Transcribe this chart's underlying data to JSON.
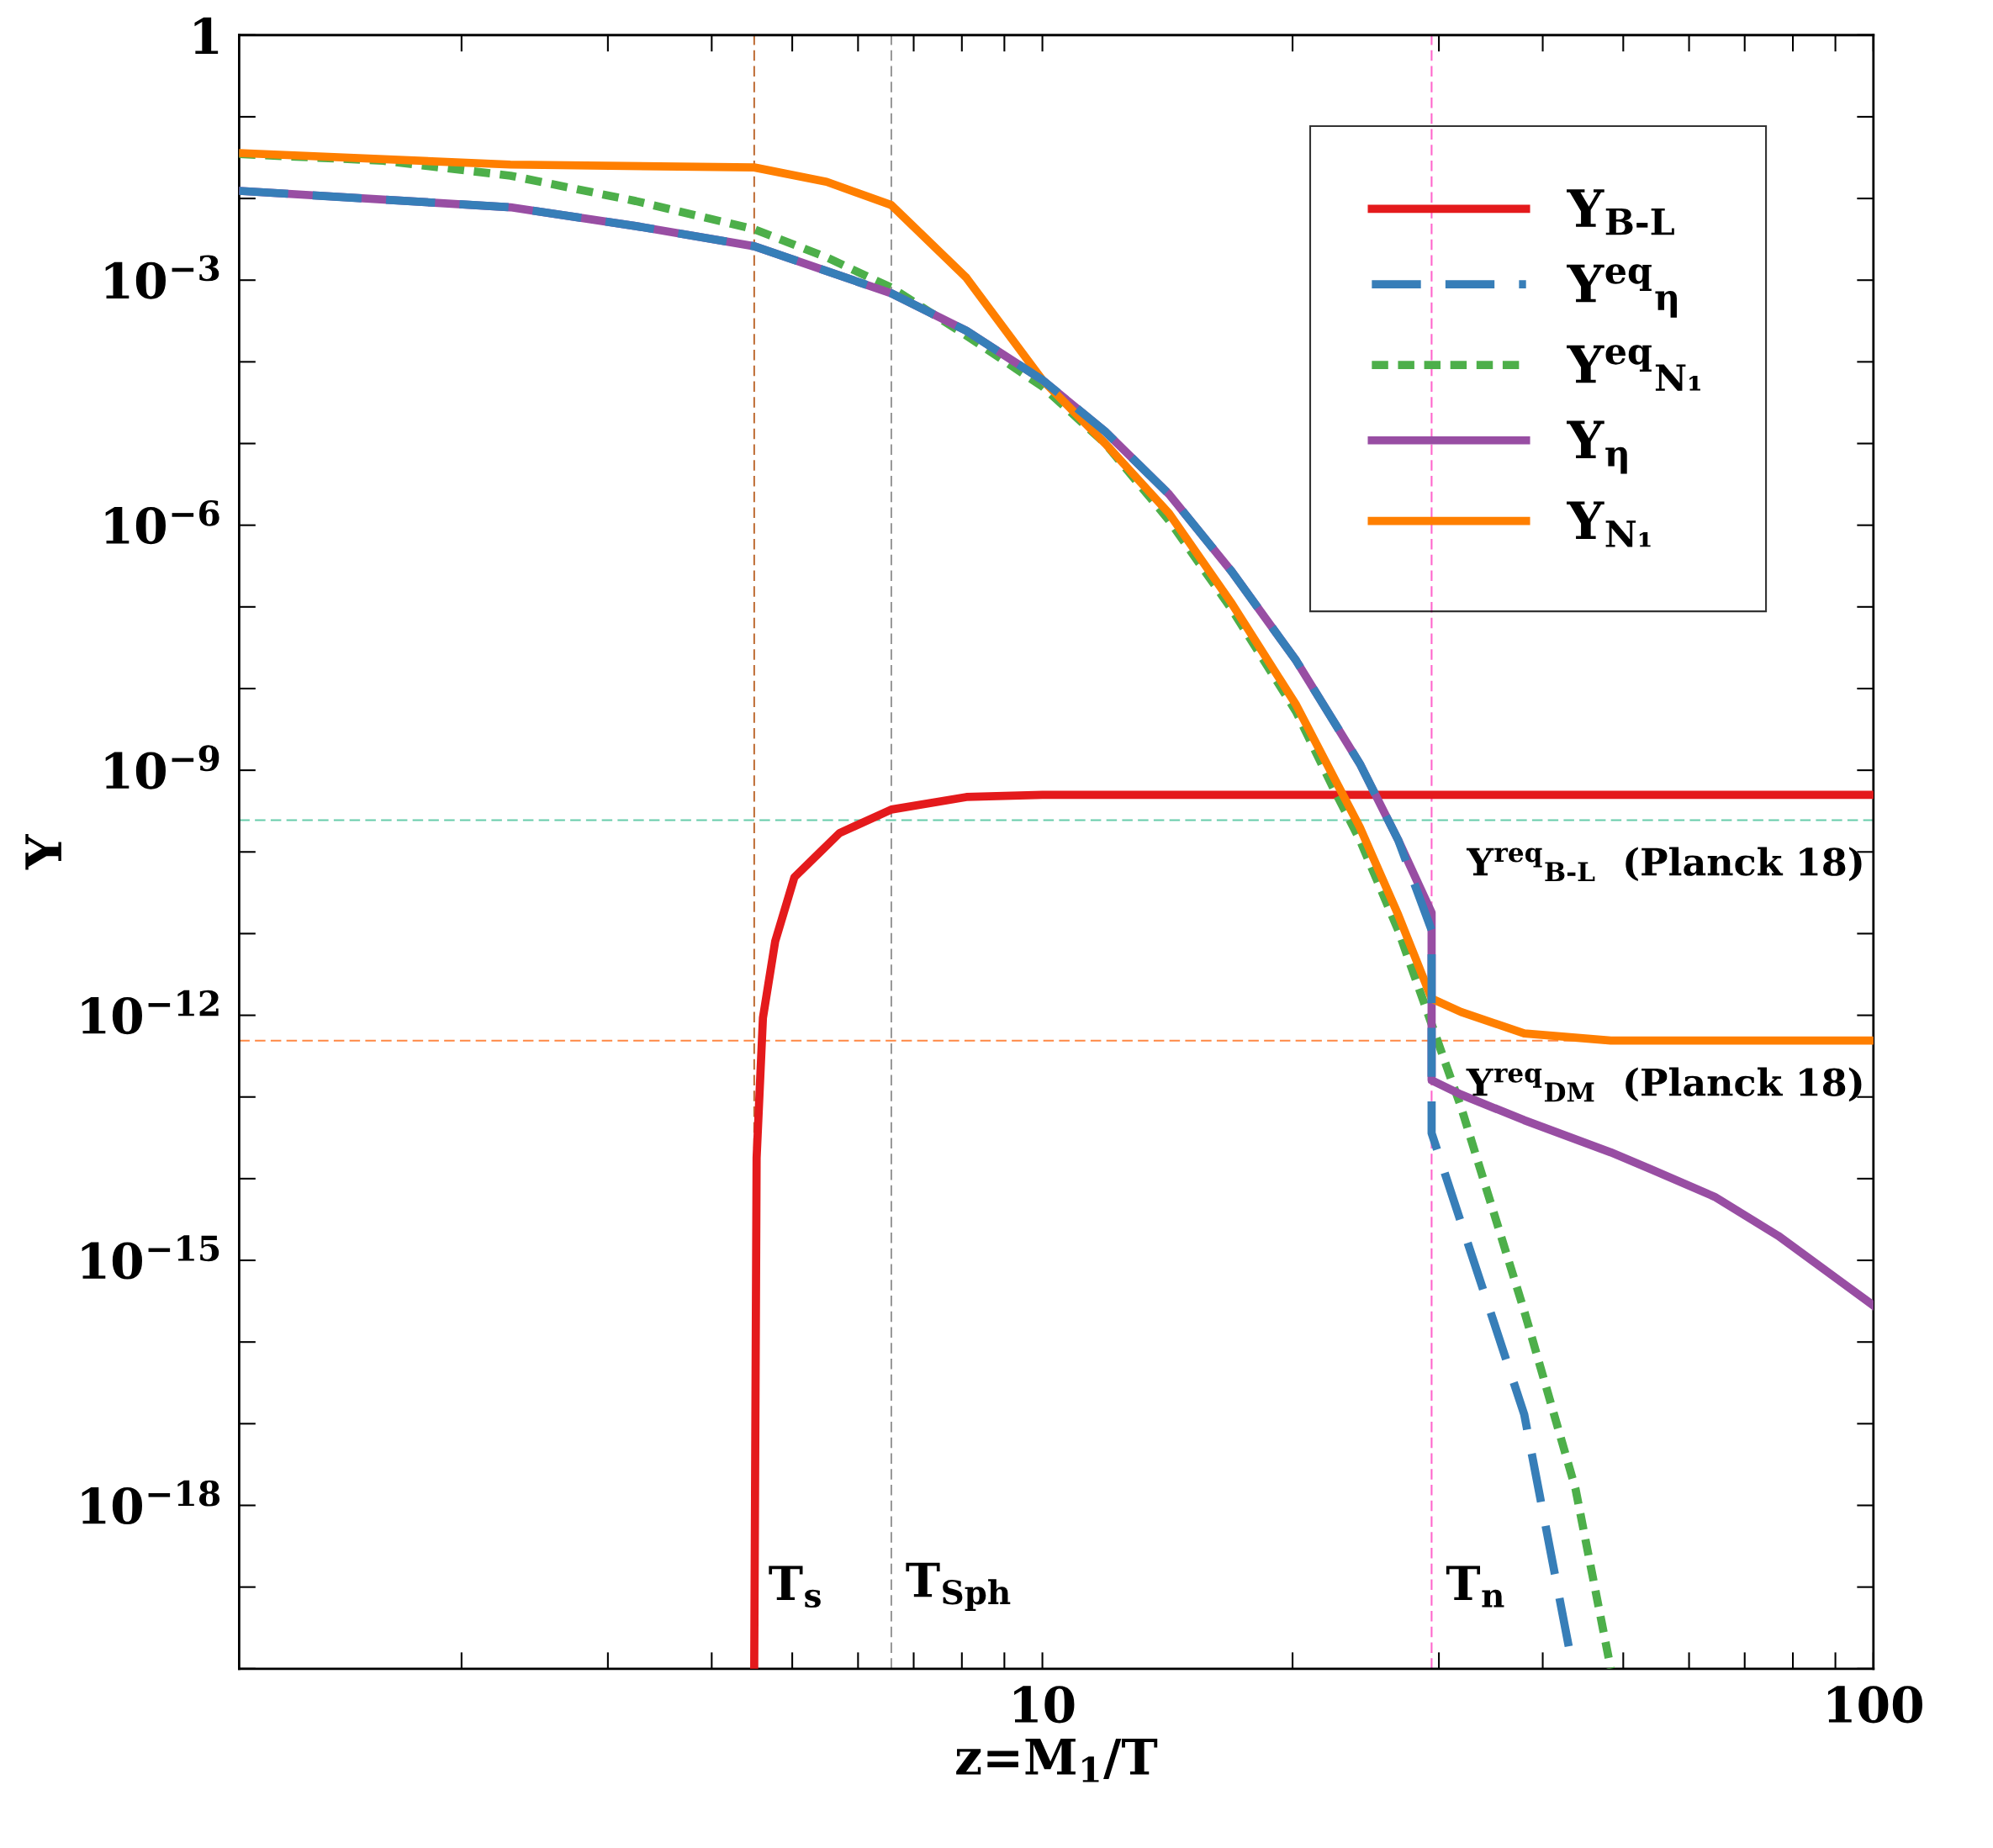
{
  "chart_data": {
    "type": "line",
    "xlabel": "z=M$_{1}$/T",
    "ylabel": "Y",
    "log": "xy",
    "legend": "top right",
    "grid": false,
    "xlim": [
      1.08,
      100
    ],
    "ylim": [
      1e-20,
      1
    ],
    "xticks": [
      10,
      100
    ],
    "yticks": [
      {
        "value": 1e-18,
        "label": "10$^{−18}$"
      },
      {
        "value": 1e-15,
        "label": "10$^{−15}$"
      },
      {
        "value": 1e-12,
        "label": "10$^{−12}$"
      },
      {
        "value": 1e-09,
        "label": "10$^{−9}$"
      },
      {
        "value": 1e-06,
        "label": "10$^{−6}$"
      },
      {
        "value": 0.001,
        "label": "10$^{−3}$"
      },
      1
    ],
    "series": [
      {
        "name": "Y$_{B‐L}$",
        "color": "#e41a1c",
        "line_style": "solid",
        "x": [
          4.5,
          4.53,
          4.61,
          4.77,
          5.03,
          5.7,
          6.58,
          8.1,
          10,
          100
        ],
        "values": [
          1e-20,
          1.8e-14,
          9.3e-13,
          8.1e-12,
          4.9e-11,
          1.7e-10,
          3.3e-10,
          4.7e-10,
          5e-10,
          5e-10
        ]
      },
      {
        "name": "Y$^{eq}$$_{η}$",
        "color": "#377eb8",
        "line_style": "dashed",
        "x": [
          1.08,
          2.29,
          3.24,
          4.5,
          6.58,
          8.1,
          10,
          11.9,
          14.2,
          16.9,
          20.2,
          24.1,
          26.8,
          29.4,
          29.4,
          38.0,
          43.5
        ],
        "values": [
          0.0124,
          0.0078,
          0.0046,
          0.0026,
          0.00069,
          0.00024,
          6e-05,
          1.4e-05,
          2.4e-06,
          2.7e-07,
          2.2e-08,
          1.2e-09,
          1.4e-10,
          1.1e-11,
          3.6e-14,
          1.3e-17,
          1e-20
        ]
      },
      {
        "name": "Y$^{eq}$$_{N₁}$",
        "color": "#4daf4a",
        "line_style": "dotted",
        "x": [
          1.08,
          1.61,
          2.29,
          3.24,
          4.5,
          5.5,
          6.58,
          8.1,
          10,
          11.9,
          14.2,
          16.9,
          20.2,
          22.4,
          24.1,
          26.8,
          29.4,
          31.9,
          38.0,
          43.8,
          48.3
        ],
        "values": [
          0.035,
          0.029,
          0.019,
          0.0093,
          0.0042,
          0.0019,
          0.00081,
          0.00021,
          5e-05,
          1e-05,
          1.15e-06,
          9.3e-08,
          5.2e-09,
          6e-10,
          1.4e-10,
          1.1e-11,
          7.8e-13,
          7.5e-14,
          2.4e-16,
          1.6e-18,
          1e-20
        ]
      },
      {
        "name": "Y$_{η}$",
        "color": "#984ea3",
        "line_style": "solid",
        "x": [
          1.08,
          2.29,
          3.24,
          4.5,
          6.58,
          8.1,
          10,
          11.9,
          14.2,
          16.9,
          20.2,
          24.1,
          26.8,
          29.4,
          29.4,
          31.9,
          38.0,
          48.3,
          54.0,
          64.4,
          76.8,
          100
        ],
        "values": [
          0.0124,
          0.0078,
          0.0046,
          0.0026,
          0.00069,
          0.00024,
          6e-05,
          1.4e-05,
          2.4e-06,
          2.7e-07,
          2.2e-08,
          1.2e-09,
          1.4e-10,
          1.8e-11,
          1.6e-13,
          1.07e-13,
          5.2e-14,
          2.1e-14,
          1.3e-14,
          6e-15,
          2e-15,
          2.8e-16
        ]
      },
      {
        "name": "Y$_{N₁}$",
        "color": "#ff7f00",
        "line_style": "solid",
        "x": [
          1.08,
          2.29,
          4.5,
          5.5,
          6.58,
          8.1,
          10,
          11.9,
          14.2,
          16.9,
          20.2,
          24.1,
          26.8,
          29.4,
          31.9,
          38.0,
          48.3,
          100
        ],
        "values": [
          0.036,
          0.026,
          0.024,
          0.016,
          0.0083,
          0.00107,
          6e-05,
          1e-05,
          1.4e-06,
          1.1e-07,
          6.3e-09,
          2e-10,
          1.7e-11,
          1.6e-12,
          1.1e-12,
          6e-13,
          4.9e-13,
          4.9e-13
        ]
      }
    ],
    "ref_lines": [
      {
        "axis": "x",
        "value": 4.5,
        "label": "T$_{s}$",
        "color": "#c0703a",
        "line_style": "dashed"
      },
      {
        "axis": "x",
        "value": 6.58,
        "label": "T$_{Sph}$",
        "color": "#999999",
        "line_style": "dashed"
      },
      {
        "axis": "x",
        "value": 29.4,
        "label": "T$_{n}$",
        "color": "#ff66cc",
        "line_style": "dashed"
      },
      {
        "axis": "y",
        "value": 2.45e-10,
        "label": "Y$^{req}$$_{B‐L}$  (Planck 18)",
        "color": "#66ccaa",
        "line_style": "dashed"
      },
      {
        "axis": "y",
        "value": 4.9e-13,
        "label": "Y$^{req}$$_{DM}$  (Planck 18)",
        "color": "#ff8844",
        "line_style": "dashed"
      }
    ]
  }
}
